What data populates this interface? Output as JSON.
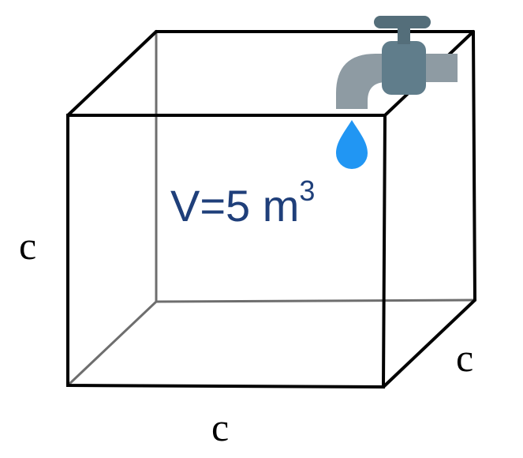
{
  "labels": {
    "height": "c",
    "width": "c",
    "depth": "c"
  },
  "volume": {
    "prefix": "V=5 m",
    "exponent": "3"
  },
  "icons": {
    "faucet": "faucet-icon",
    "water_drop": "water-drop-icon"
  },
  "colors": {
    "text_volume": "#1f3f7a",
    "faucet_pipe": "#8e9ba3",
    "faucet_body": "#607d8b",
    "faucet_handle": "#546e7a",
    "water_drop": "#2196f3",
    "edges": "#000000",
    "hidden_edges": "#6e6e6e"
  }
}
